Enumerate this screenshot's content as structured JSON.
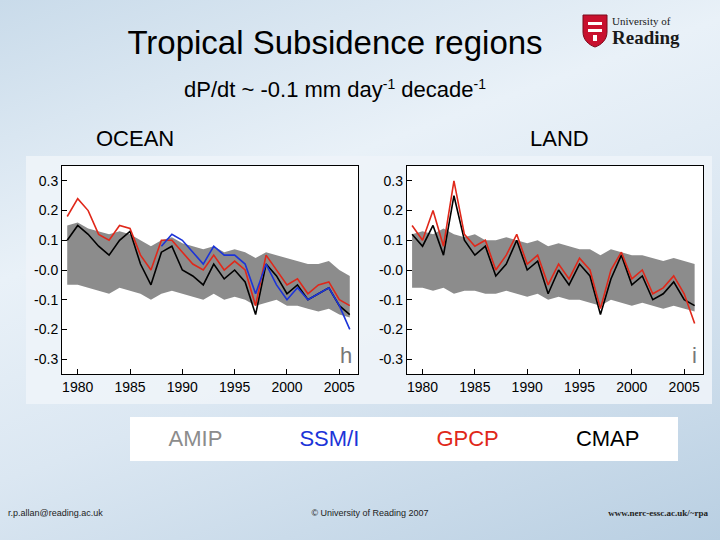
{
  "header": {
    "title": "Tropical Subsidence regions",
    "subtitle": [
      {
        "text": "dP/dt ~ -0.1 mm day"
      },
      {
        "text": "-1",
        "sup": true
      },
      {
        "text": " decade"
      },
      {
        "text": "-1",
        "sup": true
      }
    ],
    "logo": [
      "University of",
      "Reading"
    ]
  },
  "chart_data": [
    {
      "type": "line",
      "title": "OCEAN",
      "annotations": [
        "h"
      ],
      "grid": false,
      "x": [
        1979,
        1980,
        1981,
        1982,
        1983,
        1984,
        1985,
        1986,
        1987,
        1988,
        1989,
        1990,
        1991,
        1992,
        1993,
        1994,
        1995,
        1996,
        1997,
        1998,
        1999,
        2000,
        2001,
        2002,
        2003,
        2004,
        2005,
        2006
      ],
      "xlim": [
        1978.5,
        2006.8
      ],
      "xticks": [
        1980,
        1985,
        1990,
        1995,
        2000,
        2005
      ],
      "ylim": [
        -0.35,
        0.35
      ],
      "yticks": [
        0.3,
        0.2,
        0.1,
        {
          "value": 0,
          "label": "-0.0"
        },
        -0.1,
        -0.2,
        -0.3
      ],
      "series": [
        {
          "name": "AMIP",
          "color": "#8c8c8c",
          "type": "band",
          "lower": [
            -0.05,
            -0.05,
            -0.06,
            -0.07,
            -0.08,
            -0.06,
            -0.07,
            -0.08,
            -0.1,
            -0.08,
            -0.07,
            -0.08,
            -0.09,
            -0.1,
            -0.08,
            -0.1,
            -0.09,
            -0.1,
            -0.12,
            -0.11,
            -0.1,
            -0.12,
            -0.12,
            -0.13,
            -0.14,
            -0.13,
            -0.15,
            -0.16
          ],
          "upper": [
            0.15,
            0.16,
            0.14,
            0.13,
            0.12,
            0.13,
            0.12,
            0.1,
            0.08,
            0.1,
            0.11,
            0.09,
            0.08,
            0.07,
            0.08,
            0.06,
            0.07,
            0.06,
            0.04,
            0.06,
            0.05,
            0.04,
            0.03,
            0.02,
            0.02,
            0.03,
            0.0,
            -0.02
          ]
        },
        {
          "name": "SSM/I",
          "color": "#1c34d8",
          "type": "line",
          "values": [
            null,
            null,
            null,
            null,
            null,
            null,
            null,
            null,
            null,
            0.08,
            0.12,
            0.1,
            0.06,
            0.02,
            0.08,
            0.05,
            0.05,
            0.02,
            -0.08,
            0.02,
            -0.05,
            -0.1,
            -0.06,
            -0.1,
            -0.08,
            -0.06,
            -0.12,
            -0.2
          ]
        },
        {
          "name": "GPCP",
          "color": "#e0281a",
          "type": "line",
          "values": [
            0.18,
            0.24,
            0.2,
            0.12,
            0.1,
            0.15,
            0.14,
            0.05,
            0.0,
            0.1,
            0.1,
            0.06,
            0.02,
            0.0,
            0.05,
            0.0,
            0.03,
            0.0,
            -0.12,
            0.05,
            0.0,
            -0.05,
            -0.03,
            -0.08,
            -0.05,
            -0.04,
            -0.1,
            -0.12
          ]
        },
        {
          "name": "CMAP",
          "color": "#000000",
          "type": "line",
          "values": [
            0.1,
            0.15,
            0.12,
            0.08,
            0.05,
            0.1,
            0.13,
            0.02,
            -0.05,
            0.06,
            0.08,
            0.0,
            -0.02,
            -0.05,
            0.02,
            -0.03,
            0.0,
            -0.04,
            -0.15,
            0.02,
            -0.02,
            -0.08,
            -0.05,
            -0.1,
            -0.08,
            -0.06,
            -0.12,
            -0.15
          ]
        }
      ]
    },
    {
      "type": "line",
      "title": "LAND",
      "annotations": [
        "i"
      ],
      "grid": false,
      "x": [
        1979,
        1980,
        1981,
        1982,
        1983,
        1984,
        1985,
        1986,
        1987,
        1988,
        1989,
        1990,
        1991,
        1992,
        1993,
        1994,
        1995,
        1996,
        1997,
        1998,
        1999,
        2000,
        2001,
        2002,
        2003,
        2004,
        2005,
        2006
      ],
      "xlim": [
        1978.5,
        2006.8
      ],
      "xticks": [
        1980,
        1985,
        1990,
        1995,
        2000,
        2005
      ],
      "ylim": [
        -0.35,
        0.35
      ],
      "yticks": [
        0.3,
        0.2,
        0.1,
        {
          "value": 0,
          "label": "-0.0"
        },
        -0.1,
        -0.2,
        -0.3
      ],
      "series": [
        {
          "name": "AMIP",
          "color": "#8c8c8c",
          "type": "band",
          "lower": [
            -0.06,
            -0.06,
            -0.07,
            -0.06,
            -0.08,
            -0.07,
            -0.07,
            -0.08,
            -0.08,
            -0.07,
            -0.08,
            -0.09,
            -0.08,
            -0.1,
            -0.09,
            -0.1,
            -0.1,
            -0.11,
            -0.12,
            -0.1,
            -0.11,
            -0.12,
            -0.11,
            -0.12,
            -0.13,
            -0.12,
            -0.13,
            -0.14
          ],
          "upper": [
            0.12,
            0.13,
            0.12,
            0.14,
            0.12,
            0.11,
            0.12,
            0.1,
            0.1,
            0.11,
            0.1,
            0.09,
            0.1,
            0.08,
            0.09,
            0.08,
            0.07,
            0.07,
            0.05,
            0.07,
            0.06,
            0.05,
            0.05,
            0.04,
            0.03,
            0.04,
            0.03,
            0.02
          ]
        },
        {
          "name": "GPCP",
          "color": "#e0281a",
          "type": "line",
          "values": [
            0.15,
            0.1,
            0.2,
            0.08,
            0.3,
            0.12,
            0.08,
            0.1,
            0.0,
            0.05,
            0.12,
            0.02,
            0.05,
            -0.05,
            0.02,
            -0.03,
            0.04,
            0.0,
            -0.13,
            0.0,
            0.06,
            -0.03,
            0.0,
            -0.08,
            -0.06,
            -0.02,
            -0.08,
            -0.18
          ]
        },
        {
          "name": "CMAP",
          "color": "#000000",
          "type": "line",
          "values": [
            0.12,
            0.08,
            0.15,
            0.05,
            0.25,
            0.1,
            0.05,
            0.08,
            -0.02,
            0.02,
            0.1,
            0.0,
            0.03,
            -0.08,
            0.0,
            -0.05,
            0.02,
            -0.02,
            -0.15,
            -0.03,
            0.05,
            -0.05,
            -0.02,
            -0.1,
            -0.08,
            -0.04,
            -0.1,
            -0.12
          ]
        }
      ]
    }
  ],
  "footer": {
    "left": "r.p.allan@reading.ac.uk",
    "center": "© University of Reading 2007",
    "right": "www.nerc-essc.ac.uk/~rpa"
  }
}
